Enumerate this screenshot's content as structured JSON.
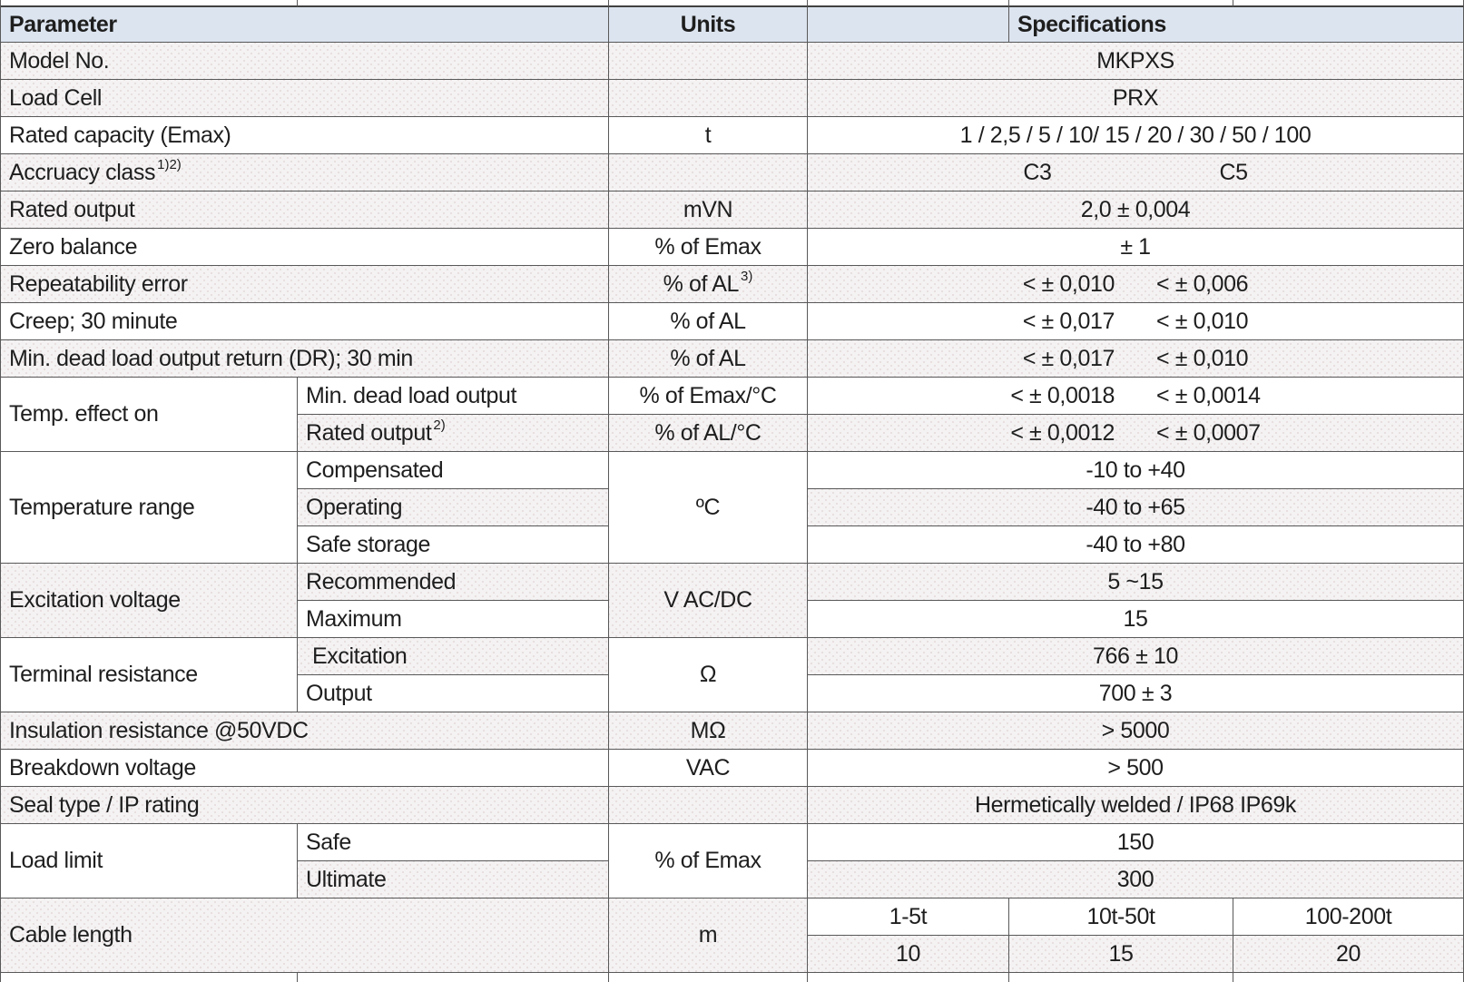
{
  "header": {
    "parameter": "Parameter",
    "units": "Units",
    "specifications": "Specifications"
  },
  "rows": {
    "model_no": {
      "label": "Model No.",
      "value": "MKPXS"
    },
    "load_cell": {
      "label": "Load Cell",
      "value": "PRX"
    },
    "rated_capacity": {
      "label": "Rated capacity (Emax)",
      "units": "t",
      "value": "1 / 2,5 / 5 / 10/ 15 / 20 / 30 / 50 / 100"
    },
    "accuracy_class": {
      "label": "Accruacy class",
      "label_sup": "1)2)",
      "c3": "C3",
      "c5": "C5"
    },
    "rated_output": {
      "label": "Rated output",
      "units": "mVN",
      "value": "2,0 ± 0,004"
    },
    "zero_balance": {
      "label": "Zero balance",
      "units": "% of Emax",
      "value": "± 1"
    },
    "repeatability": {
      "label": "Repeatability error",
      "units": "% of AL",
      "units_sup": "3)",
      "c3": "< ± 0,010",
      "c5": "< ± 0,006"
    },
    "creep": {
      "label": "Creep; 30 minute",
      "units": "% of AL",
      "c3": "< ± 0,017",
      "c5": "< ± 0,010"
    },
    "dead_load_return": {
      "label": "Min. dead load output return (DR); 30 min",
      "units": "% of AL",
      "c3": "< ± 0,017",
      "c5": "< ± 0,010"
    },
    "temp_effect": {
      "label": "Temp. effect on",
      "min_dead_load": {
        "label": "Min. dead load output",
        "units": "% of Emax/°C",
        "c3": "< ± 0,0018",
        "c5": "< ± 0,0014"
      },
      "rated_output": {
        "label": "Rated output",
        "label_sup": "2)",
        "units": "% of AL/°C",
        "c3": "< ± 0,0012",
        "c5": "< ± 0,0007"
      }
    },
    "temperature_range": {
      "label": "Temperature range",
      "units": "ºC",
      "compensated": {
        "label": "Compensated",
        "value": "-10 to +40"
      },
      "operating": {
        "label": "Operating",
        "value": "-40 to +65"
      },
      "safe_storage": {
        "label": "Safe storage",
        "value": "-40 to +80"
      }
    },
    "excitation_voltage": {
      "label": "Excitation voltage",
      "units": "V AC/DC",
      "recommended": {
        "label": "Recommended",
        "value": "5 ~15"
      },
      "maximum": {
        "label": "Maximum",
        "value": "15"
      }
    },
    "terminal_resistance": {
      "label": "Terminal resistance",
      "units": "Ω",
      "excitation": {
        "label": "Excitation",
        "value": "766 ± 10"
      },
      "output": {
        "label": "Output",
        "value": "700 ± 3"
      }
    },
    "insulation_resistance": {
      "label": "Insulation resistance @50VDC",
      "units": "MΩ",
      "value": "> 5000"
    },
    "breakdown_voltage": {
      "label": "Breakdown voltage",
      "units": "VAC",
      "value": "> 500"
    },
    "seal_type": {
      "label": "Seal type / IP rating",
      "value": "Hermetically welded / IP68 IP69k"
    },
    "load_limit": {
      "label": "Load limit",
      "units": "% of Emax",
      "safe": {
        "label": "Safe",
        "value": "150"
      },
      "ultimate": {
        "label": "Ultimate",
        "value": "300"
      }
    },
    "cable_length": {
      "label": "Cable length",
      "units": "m",
      "ranges": [
        "1-5t",
        "10t-50t",
        "100-200t"
      ],
      "values": [
        "10",
        "15",
        "20"
      ]
    }
  },
  "colors": {
    "header_bg": "#dce4ef",
    "shaded_row_bg": "#f4f2f2",
    "border": "#595959",
    "text": "#1e1e1e"
  }
}
